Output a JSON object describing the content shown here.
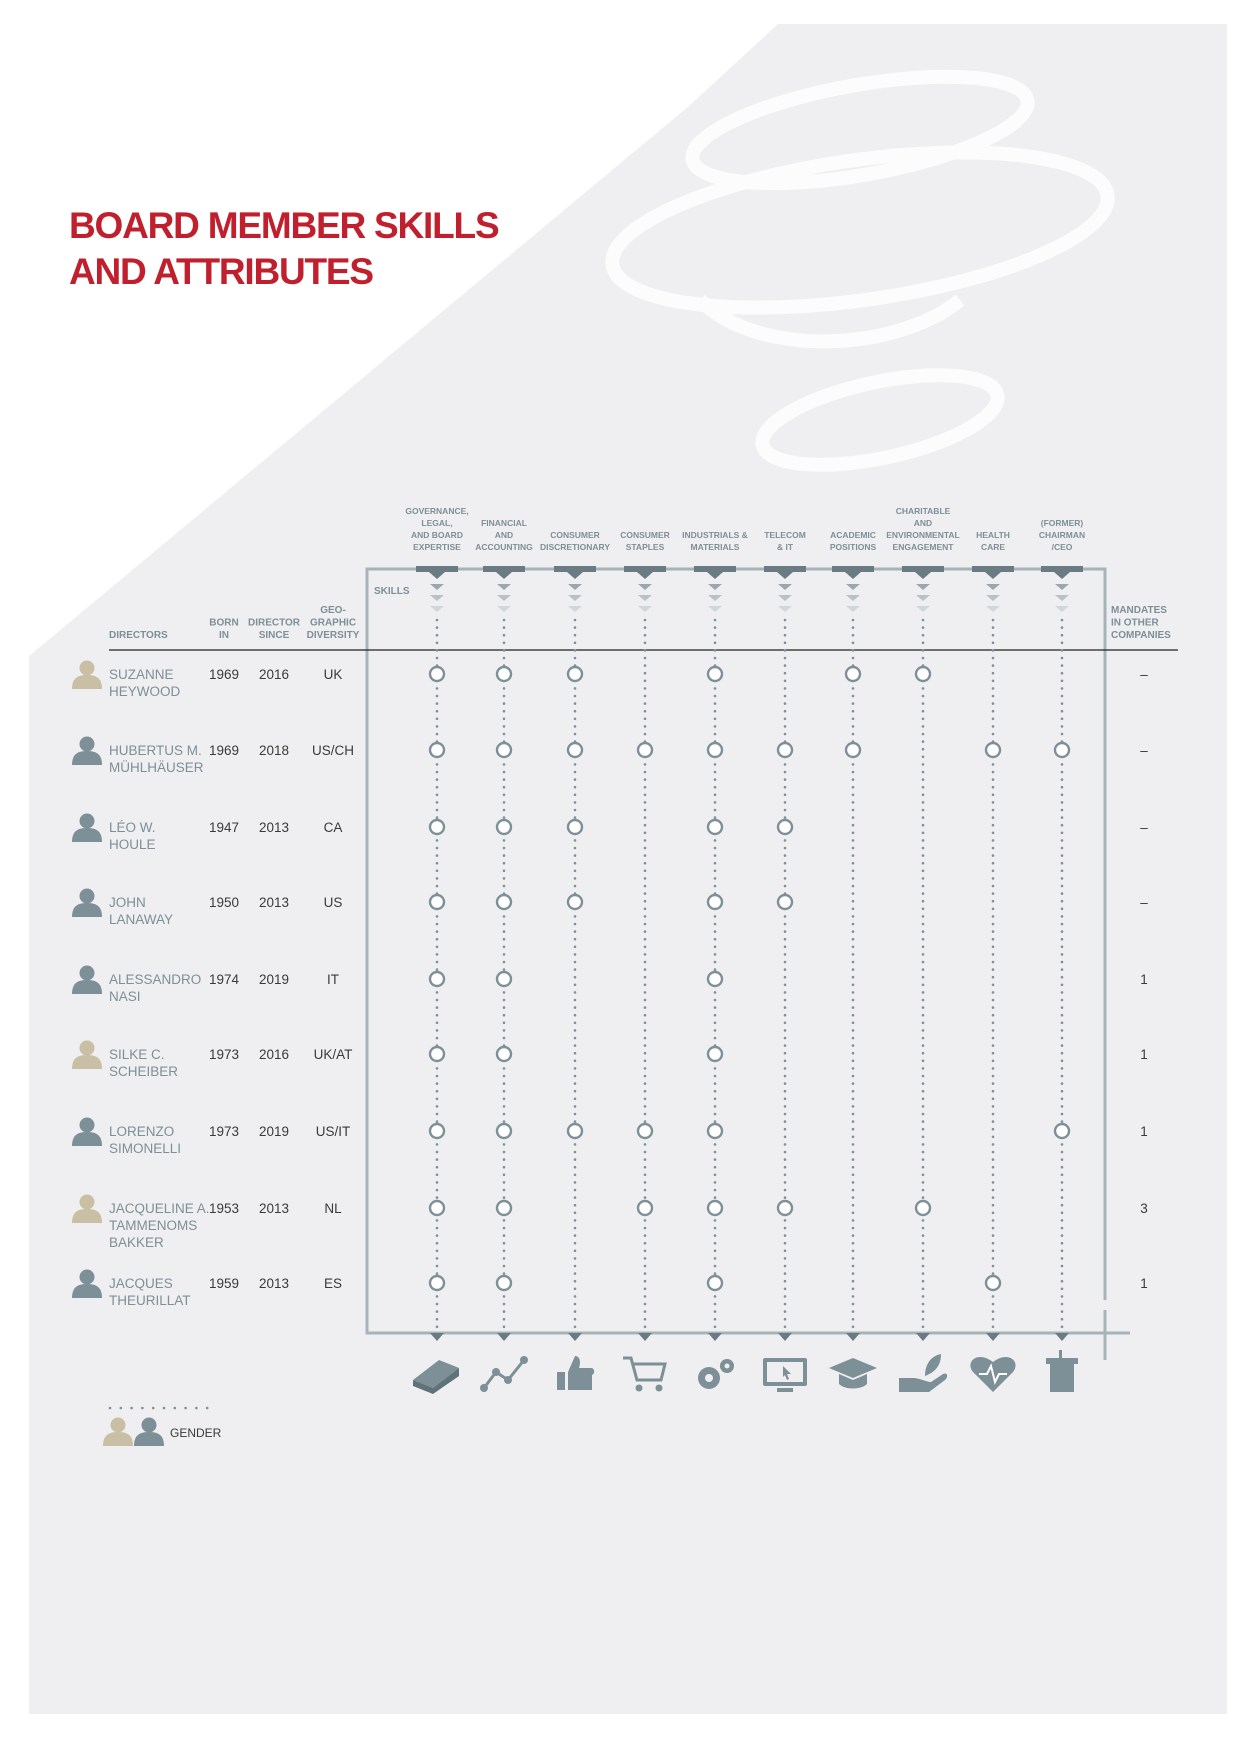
{
  "header": {
    "title": [
      "BOARD MEMBER SKILLS",
      "AND ATTRIBUTES"
    ]
  },
  "table": {
    "columns": {
      "directors": "DIRECTORS",
      "born": [
        "BORN",
        "IN"
      ],
      "since": [
        "DIRECTOR",
        "SINCE"
      ],
      "geo": [
        "GEO-",
        "GRAPHIC",
        "DIVERSITY"
      ],
      "skills": "SKILLS",
      "mandates": [
        "MANDATES",
        "IN OTHER",
        "COMPANIES"
      ]
    },
    "skills": [
      {
        "lines": [
          "GOVERNANCE,",
          "LEGAL,",
          "AND BOARD",
          "EXPERTISE"
        ]
      },
      {
        "lines": [
          "FINANCIAL",
          "AND",
          "ACCOUNTING"
        ]
      },
      {
        "lines": [
          "CONSUMER",
          "DISCRETIONARY"
        ]
      },
      {
        "lines": [
          "CONSUMER",
          "STAPLES"
        ]
      },
      {
        "lines": [
          "INDUSTRIALS &",
          "MATERIALS"
        ]
      },
      {
        "lines": [
          "TELECOM",
          "& IT"
        ]
      },
      {
        "lines": [
          "ACADEMIC",
          "POSITIONS"
        ]
      },
      {
        "lines": [
          "CHARITABLE",
          "AND",
          "ENVIRONMENTAL",
          "ENGAGEMENT"
        ]
      },
      {
        "lines": [
          "HEALTH",
          "CARE"
        ]
      },
      {
        "lines": [
          "(FORMER)",
          "CHAIRMAN",
          "/CEO"
        ]
      }
    ],
    "rows": [
      {
        "name": [
          "SUZANNE",
          "HEYWOOD"
        ],
        "born": "1969",
        "since": "2016",
        "geo": "UK",
        "mandates": "–",
        "icon_color": "#c8bfa4",
        "skills": [
          true,
          true,
          true,
          false,
          true,
          false,
          true,
          true,
          false,
          false
        ]
      },
      {
        "name": [
          "HUBERTUS M.",
          "MÜHLHÄUSER"
        ],
        "born": "1969",
        "since": "2018",
        "geo": "US/CH",
        "mandates": "–",
        "icon_color": "#7d8f97",
        "skills": [
          true,
          true,
          true,
          true,
          true,
          true,
          true,
          false,
          true,
          true
        ]
      },
      {
        "name": [
          "LÉO W.",
          "HOULE"
        ],
        "born": "1947",
        "since": "2013",
        "geo": "CA",
        "mandates": "–",
        "icon_color": "#7d8f97",
        "skills": [
          true,
          true,
          true,
          false,
          true,
          true,
          false,
          false,
          false,
          false
        ]
      },
      {
        "name": [
          "JOHN",
          "LANAWAY"
        ],
        "born": "1950",
        "since": "2013",
        "geo": "US",
        "mandates": "–",
        "icon_color": "#7d8f97",
        "skills": [
          true,
          true,
          true,
          false,
          true,
          true,
          false,
          false,
          false,
          false
        ]
      },
      {
        "name": [
          "ALESSANDRO",
          "NASI"
        ],
        "born": "1974",
        "since": "2019",
        "geo": "IT",
        "mandates": "1",
        "icon_color": "#7d8f97",
        "skills": [
          true,
          true,
          false,
          false,
          true,
          false,
          false,
          false,
          false,
          false
        ]
      },
      {
        "name": [
          "SILKE C.",
          "SCHEIBER"
        ],
        "born": "1973",
        "since": "2016",
        "geo": "UK/AT",
        "mandates": "1",
        "icon_color": "#c8bfa4",
        "skills": [
          true,
          true,
          false,
          false,
          true,
          false,
          false,
          false,
          false,
          false
        ]
      },
      {
        "name": [
          "LORENZO",
          "SIMONELLI"
        ],
        "born": "1973",
        "since": "2019",
        "geo": "US/IT",
        "mandates": "1",
        "icon_color": "#7d8f97",
        "skills": [
          true,
          true,
          true,
          true,
          true,
          false,
          false,
          false,
          false,
          true
        ]
      },
      {
        "name": [
          "JACQUELINE A.",
          "TAMMENOMS",
          "BAKKER"
        ],
        "born": "1953",
        "since": "2013",
        "geo": "NL",
        "mandates": "3",
        "icon_color": "#c8bfa4",
        "skills": [
          true,
          true,
          false,
          true,
          true,
          true,
          false,
          true,
          false,
          false
        ]
      },
      {
        "name": [
          "JACQUES",
          "THEURILLAT"
        ],
        "born": "1959",
        "since": "2013",
        "geo": "ES",
        "mandates": "1",
        "icon_color": "#7d8f97",
        "skills": [
          true,
          true,
          false,
          false,
          true,
          false,
          false,
          false,
          true,
          false
        ]
      }
    ]
  },
  "legend": {
    "label": "GENDER",
    "female_color": "#c8bfa4",
    "male_color": "#7d8f97"
  }
}
